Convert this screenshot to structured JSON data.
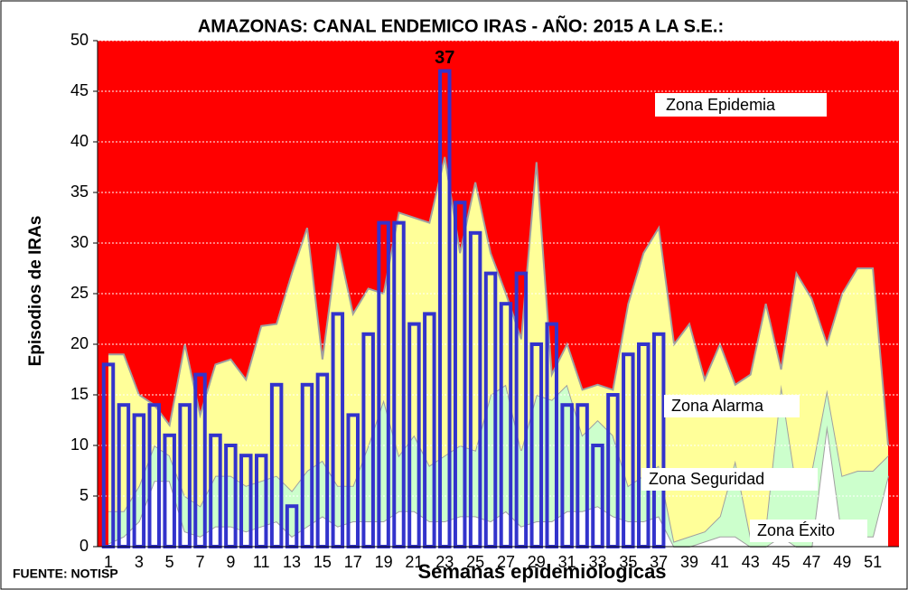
{
  "chart_data": {
    "type": "endemic-channel",
    "title": "AMAZONAS: CANAL ENDEMICO IRAS -  AÑO: 2015 A LA S.E.:",
    "annotation": "37",
    "ylabel": "Episodios de IRAs",
    "xlabel": "Semanas epidemiologicas",
    "source": "FUENTE: NOTISP",
    "categories": [
      1,
      null,
      3,
      null,
      5,
      null,
      7,
      null,
      9,
      null,
      11,
      null,
      13,
      null,
      15,
      null,
      17,
      null,
      19,
      null,
      21,
      null,
      23,
      null,
      25,
      null,
      27,
      null,
      29,
      null,
      31,
      null,
      33,
      null,
      35,
      null,
      37,
      null,
      39,
      null,
      41,
      null,
      43,
      null,
      45,
      null,
      47,
      null,
      49,
      null,
      51,
      null
    ],
    "ylim": [
      0,
      50
    ],
    "yticks": [
      0,
      5,
      10,
      15,
      20,
      25,
      30,
      35,
      40,
      45,
      50
    ],
    "grid": true,
    "upper_zone": {
      "name": "Zona Epidemia",
      "color": "#ff0000"
    },
    "zones": [
      {
        "name": "Zona Éxito",
        "color": "#ffffff",
        "values": [
          0.3,
          1,
          2.5,
          6.5,
          6.5,
          1.5,
          1,
          2,
          2,
          1.5,
          2,
          2.5,
          1,
          2,
          3,
          2,
          2.5,
          2.5,
          2.5,
          3.5,
          3.5,
          2.5,
          2.5,
          3,
          3,
          2.5,
          3.5,
          2,
          2.5,
          2.5,
          3.5,
          3.5,
          4,
          3,
          2.5,
          2.5,
          3,
          0,
          0,
          0.5,
          1,
          1,
          0,
          0,
          1,
          0,
          0,
          12,
          1,
          1,
          1,
          7
        ]
      },
      {
        "name": "Zona Seguridad",
        "color": "#ccffcc",
        "values": [
          3.5,
          3.5,
          6,
          10,
          9,
          5,
          4,
          7,
          7,
          6,
          6.5,
          7,
          5.5,
          7.5,
          8.5,
          6,
          6,
          10,
          14.5,
          9,
          11,
          8,
          9,
          10,
          9.5,
          15,
          16,
          9.5,
          15,
          14.5,
          16,
          11,
          12.5,
          11,
          6,
          7,
          8,
          0.5,
          1,
          1.5,
          3,
          8.5,
          1,
          2,
          16,
          6,
          7.5,
          15.5,
          7,
          7.5,
          7.5,
          9
        ]
      },
      {
        "name": "Zona Alarma",
        "color": "#ffff99",
        "values": [
          19,
          19,
          15,
          14,
          12,
          20,
          13,
          18,
          18.5,
          16.5,
          21.8,
          22,
          27,
          31.5,
          18.5,
          30,
          23,
          25.5,
          25,
          33,
          32.5,
          32,
          38.5,
          29,
          36,
          29,
          25,
          20.5,
          38,
          17,
          20,
          15.5,
          16,
          15.5,
          24,
          29,
          31.5,
          20,
          22,
          16.5,
          20,
          16,
          17,
          24,
          17.5,
          27,
          24.5,
          20,
          25,
          27.5,
          27.5,
          10
        ]
      }
    ],
    "bar_color": "#3333cc",
    "values": [
      18,
      14,
      13,
      14,
      11,
      14,
      17,
      11,
      10,
      9,
      9,
      16,
      4,
      16,
      17,
      23,
      13,
      21,
      32,
      32,
      22,
      23,
      47,
      34,
      31,
      27,
      24,
      27,
      20,
      22,
      14,
      14,
      10,
      15,
      19,
      20,
      21,
      null,
      null,
      null,
      null,
      null,
      null,
      null,
      null,
      null,
      null,
      null,
      null,
      null,
      null,
      null
    ]
  }
}
